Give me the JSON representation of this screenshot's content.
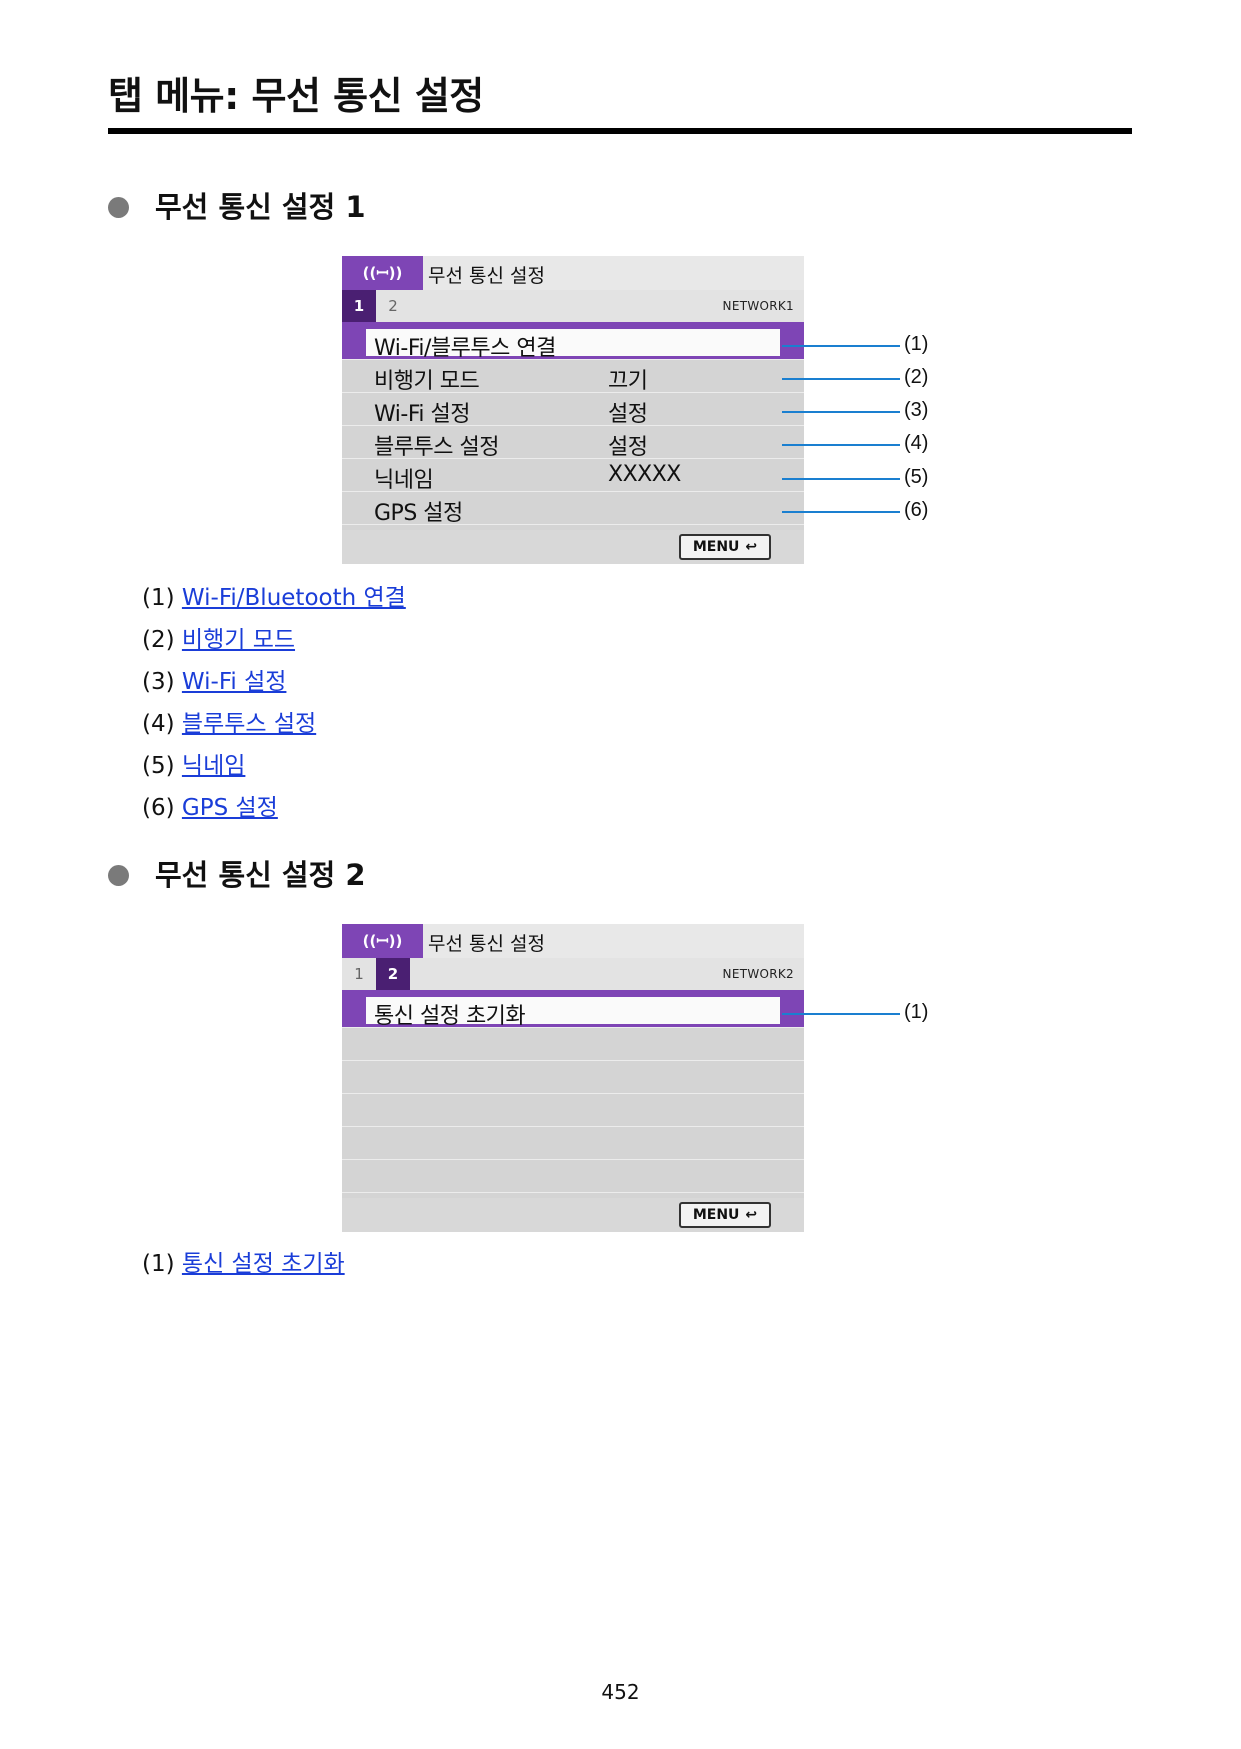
{
  "page_title": "탭 메뉴: 무선 통신 설정",
  "sections": [
    {
      "heading": "무선 통신 설정 1",
      "screen": {
        "header_icon": "((ꟷ))",
        "header_title": "무선 통신 설정",
        "tabs": [
          "1",
          "2"
        ],
        "active_tab": "1",
        "network_label": "NETWORK1",
        "rows": [
          {
            "label": "Wi-Fi/블루투스 연결",
            "value": ""
          },
          {
            "label": "비행기 모드",
            "value": "끄기"
          },
          {
            "label": "Wi-Fi 설정",
            "value": "설정"
          },
          {
            "label": "블루투스 설정",
            "value": "설정"
          },
          {
            "label": "닉네임",
            "value": "XXXXX"
          },
          {
            "label": "GPS 설정",
            "value": ""
          }
        ],
        "menu_button": "MENU",
        "callouts": [
          "(1)",
          "(2)",
          "(3)",
          "(4)",
          "(5)",
          "(6)"
        ]
      },
      "legend": [
        {
          "num": "(1)",
          "text": "Wi-Fi/Bluetooth 연결"
        },
        {
          "num": "(2)",
          "text": "비행기 모드"
        },
        {
          "num": "(3)",
          "text": "Wi-Fi 설정"
        },
        {
          "num": "(4)",
          "text": "블루투스 설정"
        },
        {
          "num": "(5)",
          "text": "닉네임"
        },
        {
          "num": "(6)",
          "text": "GPS 설정"
        }
      ]
    },
    {
      "heading": "무선 통신 설정 2",
      "screen": {
        "header_icon": "((ꟷ))",
        "header_title": "무선 통신 설정",
        "tabs": [
          "1",
          "2"
        ],
        "active_tab": "2",
        "network_label": "NETWORK2",
        "rows": [
          {
            "label": "통신 설정 초기화",
            "value": ""
          }
        ],
        "menu_button": "MENU",
        "callouts": [
          "(1)"
        ]
      },
      "legend": [
        {
          "num": "(1)",
          "text": "통신 설정 초기화"
        }
      ]
    }
  ],
  "page_number": "452",
  "colors": {
    "accent": "#7e45b5",
    "link": "#1a3dd8",
    "callout": "#1a7fd0"
  }
}
